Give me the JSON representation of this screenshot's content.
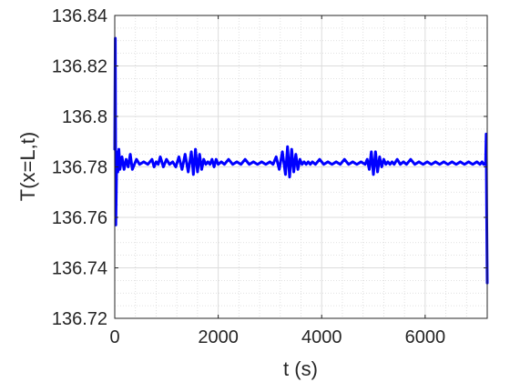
{
  "chart_data": {
    "type": "line",
    "title": "",
    "xlabel": "t (s)",
    "ylabel": "T(x=L,t)",
    "xlim": [
      0,
      7200
    ],
    "ylim": [
      136.72,
      136.84
    ],
    "x_ticks": [
      0,
      2000,
      4000,
      6000
    ],
    "x_tick_labels": [
      "0",
      "2000",
      "4000",
      "6000"
    ],
    "y_ticks": [
      136.72,
      136.74,
      136.76,
      136.78,
      136.8,
      136.82,
      136.84
    ],
    "y_tick_labels": [
      "136.72",
      "136.74",
      "136.76",
      "136.78",
      "136.8",
      "136.82",
      "136.84"
    ],
    "grid": true,
    "minor_grid": true,
    "line_color": "#0000ff",
    "series": [
      {
        "x": [
          0,
          10,
          20,
          40,
          60,
          80,
          100,
          140,
          180,
          220,
          260,
          300,
          340,
          380,
          420,
          480,
          560,
          640,
          720,
          760,
          800,
          840,
          880,
          940,
          1000,
          1060,
          1120,
          1180,
          1240,
          1300,
          1360,
          1420,
          1480,
          1520,
          1560,
          1600,
          1640,
          1680,
          1720,
          1760,
          1800,
          1840,
          1880,
          1920,
          1960,
          2000,
          2060,
          2120,
          2200,
          2280,
          2360,
          2440,
          2520,
          2600,
          2680,
          2760,
          2840,
          2920,
          3000,
          3060,
          3120,
          3180,
          3240,
          3300,
          3340,
          3380,
          3420,
          3460,
          3500,
          3540,
          3580,
          3620,
          3660,
          3700,
          3740,
          3780,
          3820,
          3880,
          3960,
          4040,
          4120,
          4200,
          4280,
          4360,
          4440,
          4520,
          4600,
          4680,
          4760,
          4840,
          4880,
          4920,
          4960,
          5000,
          5040,
          5080,
          5120,
          5160,
          5200,
          5240,
          5280,
          5320,
          5360,
          5400,
          5460,
          5520,
          5580,
          5640,
          5720,
          5800,
          5880,
          5960,
          6040,
          6120,
          6200,
          6280,
          6360,
          6440,
          6520,
          6600,
          6680,
          6760,
          6840,
          6920,
          7000,
          7060,
          7100,
          7130,
          7150,
          7170,
          7180,
          7190,
          7200
        ],
        "y": [
          136.787,
          136.831,
          136.757,
          136.786,
          136.778,
          136.787,
          136.779,
          136.784,
          136.779,
          136.783,
          136.78,
          136.785,
          136.779,
          136.781,
          136.783,
          136.781,
          136.782,
          136.781,
          136.783,
          136.78,
          136.782,
          136.781,
          136.784,
          136.78,
          136.783,
          136.781,
          136.782,
          136.78,
          136.784,
          136.779,
          136.785,
          136.778,
          136.786,
          136.777,
          136.787,
          136.778,
          136.785,
          136.779,
          136.783,
          136.781,
          136.782,
          136.781,
          136.783,
          136.78,
          136.783,
          136.781,
          136.782,
          136.781,
          136.783,
          136.781,
          136.782,
          136.781,
          136.783,
          136.781,
          136.782,
          136.781,
          136.782,
          136.781,
          136.782,
          136.781,
          136.784,
          136.779,
          136.786,
          136.777,
          136.788,
          136.776,
          136.787,
          136.778,
          136.785,
          136.779,
          136.783,
          136.781,
          136.782,
          136.781,
          136.782,
          136.781,
          136.782,
          136.781,
          136.783,
          136.781,
          136.782,
          136.781,
          136.782,
          136.781,
          136.783,
          136.781,
          136.782,
          136.781,
          136.782,
          136.781,
          136.783,
          136.779,
          136.786,
          136.777,
          136.786,
          136.778,
          136.784,
          136.78,
          136.783,
          136.781,
          136.782,
          136.781,
          136.782,
          136.781,
          136.783,
          136.781,
          136.782,
          136.781,
          136.783,
          136.781,
          136.782,
          136.781,
          136.782,
          136.781,
          136.782,
          136.781,
          136.782,
          136.781,
          136.782,
          136.781,
          136.782,
          136.781,
          136.782,
          136.781,
          136.782,
          136.781,
          136.782,
          136.781,
          136.781,
          136.782,
          136.793,
          136.76,
          136.734
        ]
      }
    ]
  }
}
